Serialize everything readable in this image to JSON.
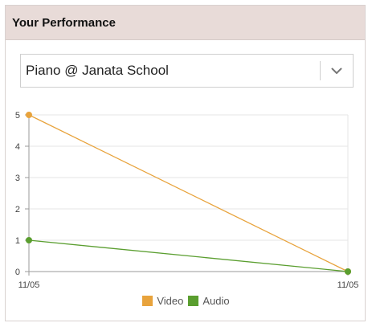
{
  "card": {
    "title": "Your Performance"
  },
  "instrument_select": {
    "selected": "Piano @ Janata School"
  },
  "icons": {
    "dropdown": "chevron-down-icon"
  },
  "colors": {
    "header_bg": "#e8dbd8",
    "video": "#e8a33c",
    "audio": "#5a9e2f"
  },
  "chart_data": {
    "type": "line",
    "x": [
      "11/05",
      "11/05"
    ],
    "yticks": [
      "0",
      "1",
      "2",
      "3",
      "4",
      "5"
    ],
    "ylim": [
      0,
      5
    ],
    "grid": true,
    "legend_position": "bottom",
    "series": [
      {
        "name": "Video",
        "values": [
          5,
          0
        ],
        "color": "#e8a33c"
      },
      {
        "name": "Audio",
        "values": [
          1,
          0
        ],
        "color": "#5a9e2f"
      }
    ]
  }
}
